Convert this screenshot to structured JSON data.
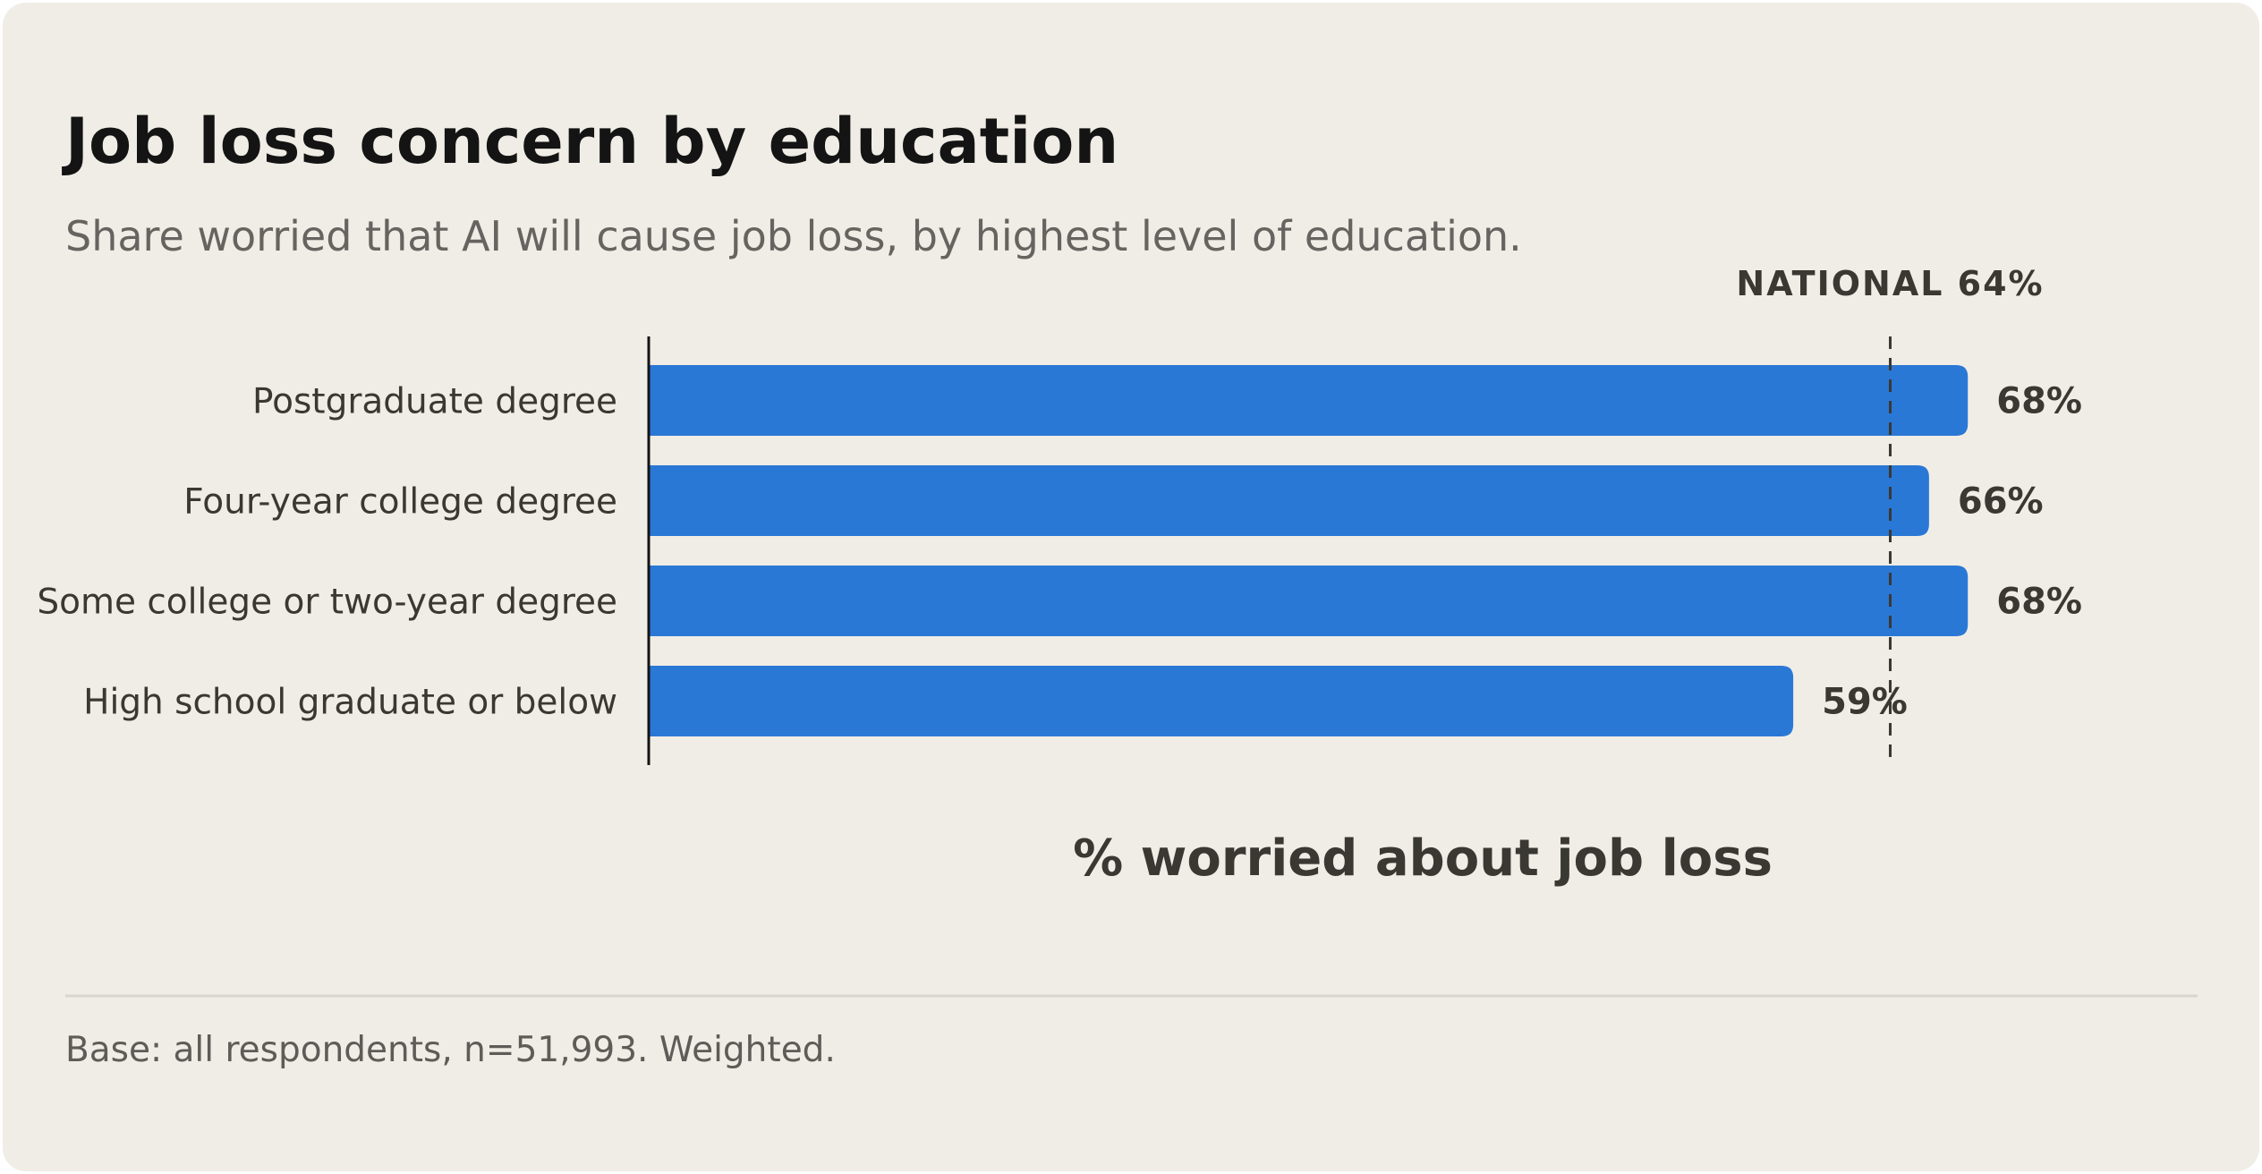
{
  "chart_data": {
    "type": "bar",
    "orientation": "horizontal",
    "title": "Job loss concern by education",
    "subtitle": "Share worried that AI will cause job loss, by highest level of education.",
    "categories": [
      "Postgraduate degree",
      "Four-year college degree",
      "Some college or two-year degree",
      "High school graduate or below"
    ],
    "values": [
      68,
      66,
      68,
      59
    ],
    "value_labels": [
      "68%",
      "66%",
      "68%",
      "59%"
    ],
    "color": "#2a78d6",
    "xlim": [
      0,
      100
    ],
    "x_label": "% worried about job loss",
    "reference_line": {
      "value": 64,
      "label": "NATIONAL 64%"
    },
    "footnote": "Base: all respondents, n=51,993. Weighted."
  }
}
